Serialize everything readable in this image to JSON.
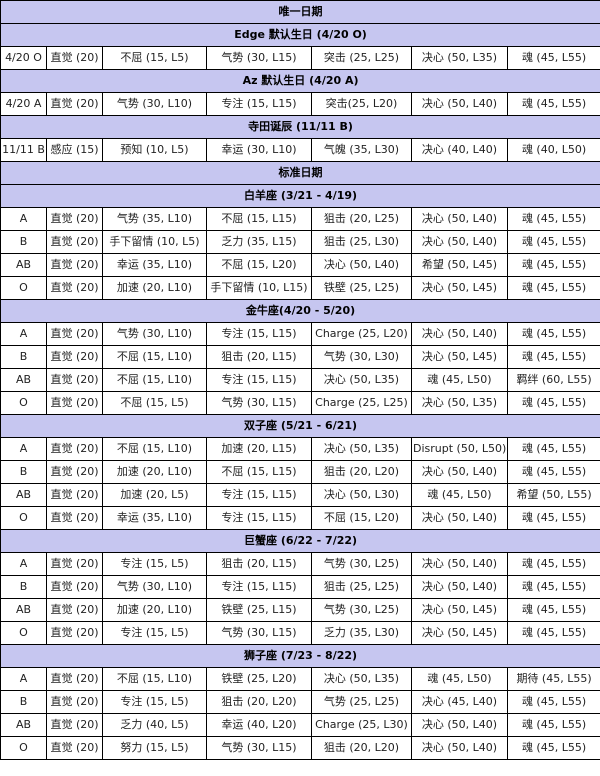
{
  "sections": [
    {
      "title": "唯一日期",
      "type": "section"
    },
    {
      "title": "Edge 默认生日 (4/20 O)",
      "type": "sub",
      "rows": [
        [
          "4/20 O",
          "直觉 (20)",
          "不屈 (15, L5)",
          "气势 (30, L15)",
          "突击 (25, L25)",
          "决心 (50, L35)",
          "魂 (45, L55)"
        ]
      ]
    },
    {
      "title": "Az 默认生日 (4/20 A)",
      "type": "sub",
      "rows": [
        [
          "4/20 A",
          "直觉 (20)",
          "气势 (30, L10)",
          "专注 (15, L15)",
          "突击(25, L20)",
          "决心 (50, L40)",
          "魂 (45, L55)"
        ]
      ]
    },
    {
      "title": "寺田诞辰 (11/11 B)",
      "type": "sub",
      "rows": [
        [
          "11/11 B",
          "感应 (15)",
          "预知 (10, L5)",
          "幸运 (30, L10)",
          "气魄 (35, L30)",
          "决心 (40, L40)",
          "魂 (40, L50)"
        ]
      ]
    },
    {
      "title": "标准日期",
      "type": "section"
    },
    {
      "title": "白羊座 (3/21 - 4/19)",
      "type": "sub",
      "rows": [
        [
          "A",
          "直觉 (20)",
          "气势 (35, L10)",
          "不屈 (15, L15)",
          "狙击 (20, L25)",
          "决心 (50, L40)",
          "魂 (45, L55)"
        ],
        [
          "B",
          "直觉 (20)",
          "手下留情 (10, L5)",
          "乏力 (35, L15)",
          "狙击 (25, L30)",
          "决心 (50, L40)",
          "魂 (45, L55)"
        ],
        [
          "AB",
          "直觉 (20)",
          "幸运 (35, L10)",
          "不屈 (15, L20)",
          "决心 (50, L40)",
          "希望 (50, L45)",
          "魂 (45, L55)"
        ],
        [
          "O",
          "直觉 (20)",
          "加速 (20, L10)",
          "手下留情 (10, L15)",
          "铁壁 (25, L25)",
          "决心 (50, L45)",
          "魂 (45, L55)"
        ]
      ]
    },
    {
      "title": "金牛座(4/20 - 5/20)",
      "type": "sub",
      "rows": [
        [
          "A",
          "直觉 (20)",
          "气势 (30, L10)",
          "专注 (15, L15)",
          "Charge (25, L20)",
          "决心 (50, L40)",
          "魂 (45, L55)"
        ],
        [
          "B",
          "直觉 (20)",
          "不屈 (15, L10)",
          "狙击 (20, L15)",
          "气势 (30, L30)",
          "决心 (50, L45)",
          "魂 (45, L55)"
        ],
        [
          "AB",
          "直觉 (20)",
          "不屈 (15, L10)",
          "专注 (15, L15)",
          "决心 (50, L35)",
          "魂 (45, L50)",
          "羁绊 (60, L55)"
        ],
        [
          "O",
          "直觉 (20)",
          "不屈 (15, L5)",
          "气势 (30, L15)",
          "Charge (25, L25)",
          "决心 (50, L35)",
          "魂 (45, L55)"
        ]
      ]
    },
    {
      "title": "双子座 (5/21 - 6/21)",
      "type": "sub",
      "rows": [
        [
          "A",
          "直觉 (20)",
          "不屈 (15, L10)",
          "加速 (20, L15)",
          "决心 (50, L35)",
          "Disrupt (50, L50)",
          "魂 (45, L55)"
        ],
        [
          "B",
          "直觉 (20)",
          "加速 (20, L10)",
          "不屈 (15, L15)",
          "狙击 (20, L20)",
          "决心 (50, L40)",
          "魂 (45, L55)"
        ],
        [
          "AB",
          "直觉 (20)",
          "加速 (20, L5)",
          "专注 (15, L15)",
          "决心 (50, L30)",
          "魂 (45, L50)",
          "希望 (50, L55)"
        ],
        [
          "O",
          "直觉 (20)",
          "幸运 (35, L10)",
          "专注 (15, L15)",
          "不屈 (15, L20)",
          "决心 (50, L40)",
          "魂 (45, L55)"
        ]
      ]
    },
    {
      "title": "巨蟹座 (6/22 - 7/22)",
      "type": "sub",
      "rows": [
        [
          "A",
          "直觉 (20)",
          "专注 (15, L5)",
          "狙击 (20, L15)",
          "气势 (30, L25)",
          "决心 (50, L40)",
          "魂 (45, L55)"
        ],
        [
          "B",
          "直觉 (20)",
          "气势 (30, L10)",
          "专注 (15, L15)",
          "狙击 (25, L25)",
          "决心 (50, L40)",
          "魂 (45, L55)"
        ],
        [
          "AB",
          "直觉 (20)",
          "加速 (20, L10)",
          "铁壁 (25, L15)",
          "气势 (30, L25)",
          "决心 (50, L45)",
          "魂 (45, L55)"
        ],
        [
          "O",
          "直觉 (20)",
          "专注 (15, L5)",
          "气势 (30, L15)",
          "乏力 (35, L30)",
          "决心 (50, L45)",
          "魂 (45, L55)"
        ]
      ]
    },
    {
      "title": "狮子座 (7/23 - 8/22)",
      "type": "sub",
      "rows": [
        [
          "A",
          "直觉 (20)",
          "不屈 (15, L10)",
          "铁壁 (25, L20)",
          "决心 (50, L35)",
          "魂 (45, L50)",
          "期待 (45, L55)"
        ],
        [
          "B",
          "直觉 (20)",
          "专注 (15, L5)",
          "狙击 (20, L20)",
          "气势 (25, L25)",
          "决心 (45, L40)",
          "魂 (45, L55)"
        ],
        [
          "AB",
          "直觉 (20)",
          "乏力 (40, L5)",
          "幸运 (40, L20)",
          "Charge (25, L30)",
          "决心 (50, L40)",
          "魂 (45, L55)"
        ],
        [
          "O",
          "直觉 (20)",
          "努力 (15, L5)",
          "气势 (30, L15)",
          "狙击 (20, L20)",
          "决心 (50, L40)",
          "魂 (45, L55)"
        ]
      ]
    }
  ]
}
